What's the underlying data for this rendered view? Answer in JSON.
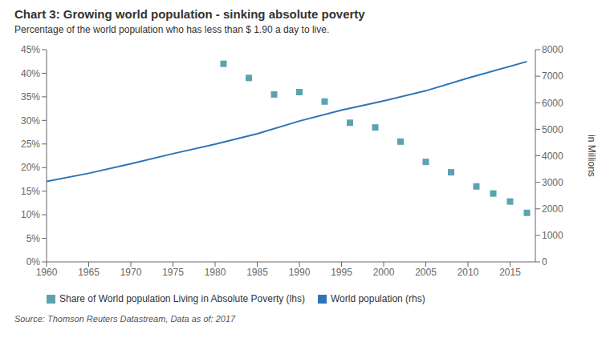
{
  "chart_data": {
    "type": "combo",
    "title": "Chart 3: Growing world population - sinking absolute poverty",
    "subtitle": "Percentage of the world population who has less than $ 1.90 a day to live.",
    "source": "Source: Thomson Reuters Datastream, Data as of: 2017",
    "y2_label": "in Millions",
    "xlim": [
      1960,
      2018
    ],
    "xticks": [
      1960,
      1965,
      1970,
      1975,
      1980,
      1985,
      1990,
      1995,
      2000,
      2005,
      2010,
      2015
    ],
    "ylim": [
      0,
      0.45
    ],
    "yticks": [
      {
        "value": 0,
        "label": "0%"
      },
      {
        "value": 0.05,
        "label": "5%"
      },
      {
        "value": 0.1,
        "label": "10%"
      },
      {
        "value": 0.15,
        "label": "15%"
      },
      {
        "value": 0.2,
        "label": "20%"
      },
      {
        "value": 0.25,
        "label": "25%"
      },
      {
        "value": 0.3,
        "label": "30%"
      },
      {
        "value": 0.35,
        "label": "35%"
      },
      {
        "value": 0.4,
        "label": "40%"
      },
      {
        "value": 0.45,
        "label": "45%"
      }
    ],
    "y2lim": [
      0,
      8000
    ],
    "y2ticks": [
      0,
      1000,
      2000,
      3000,
      4000,
      5000,
      6000,
      7000,
      8000
    ],
    "grid": false,
    "legend": "bottom",
    "series": [
      {
        "name": "Share of World population Living in Absolute Poverty (lhs)",
        "type": "scatter",
        "marker": "square",
        "color": "#5ba3b0",
        "x": [
          1981,
          1984,
          1987,
          1990,
          1993,
          1996,
          1999,
          2002,
          2005,
          2008,
          2011,
          2013,
          2015,
          2017
        ],
        "values": [
          0.42,
          0.39,
          0.355,
          0.36,
          0.34,
          0.295,
          0.285,
          0.255,
          0.212,
          0.19,
          0.16,
          0.145,
          0.128,
          0.104
        ]
      },
      {
        "name": "World population (rhs)",
        "type": "line",
        "axis": "y2",
        "color": "#2e75b6",
        "x": [
          1960,
          1965,
          1970,
          1975,
          1980,
          1985,
          1990,
          1995,
          2000,
          2005,
          2010,
          2017
        ],
        "values": [
          3032,
          3340,
          3700,
          4079,
          4435,
          4831,
          5310,
          5720,
          6070,
          6450,
          6930,
          7550
        ]
      }
    ]
  }
}
